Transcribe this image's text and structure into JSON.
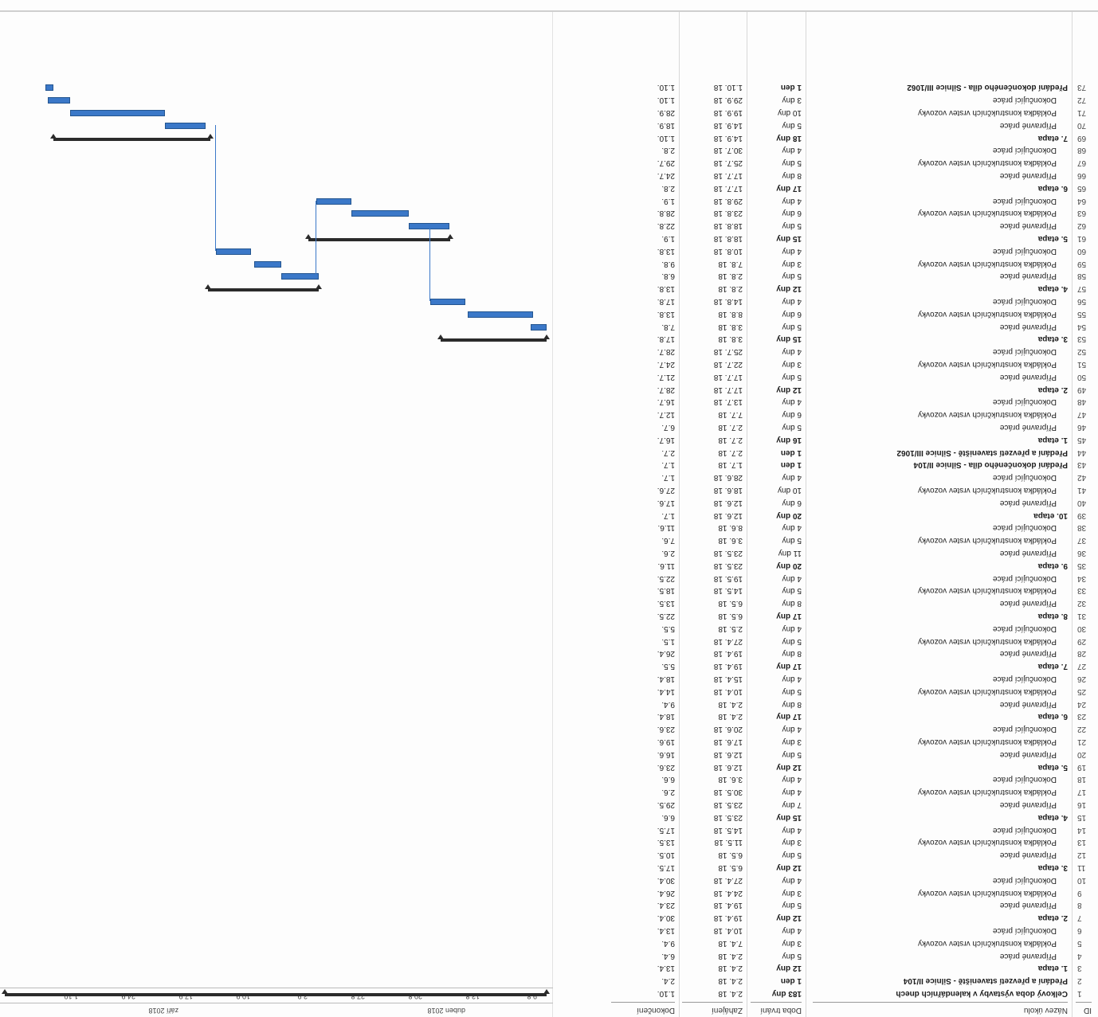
{
  "header": {
    "id": "ID",
    "name": "Název úkolu",
    "duration": "Doba trvání",
    "start": "Zahájení",
    "finish": "Dokončení"
  },
  "timescale": {
    "months": [
      "duben 2018",
      "září 2018"
    ],
    "days": [
      "9.8.",
      "13.8.",
      "20.8.",
      "27.8.",
      "3.9.",
      "10.9.",
      "17.9.",
      "24.9.",
      "1.10."
    ]
  },
  "tasks": [
    {
      "id": "1",
      "name": "Celkový doba výstavby v kalendářních dnech",
      "duration": "183 dny",
      "start": "2.4. 18",
      "finish": "1.10.",
      "level": 1
    },
    {
      "id": "2",
      "name": "Předání a převzetí staveniště - Silnice II/104",
      "duration": "1 den",
      "start": "2.4. 18",
      "finish": "2.4.",
      "level": 2
    },
    {
      "id": "3",
      "name": "1. etapa",
      "duration": "12 dny",
      "start": "2.4. 18",
      "finish": "13.4.",
      "level": 2
    },
    {
      "id": "4",
      "name": "Přípravné práce",
      "duration": "5 dny",
      "start": "2.4. 18",
      "finish": "6.4.",
      "level": 3
    },
    {
      "id": "5",
      "name": "Pokládka konstrukčních vrstev vozovky",
      "duration": "3 dny",
      "start": "7.4. 18",
      "finish": "9.4.",
      "level": 3
    },
    {
      "id": "6",
      "name": "Dokončující práce",
      "duration": "4 dny",
      "start": "10.4. 18",
      "finish": "13.4.",
      "level": 3
    },
    {
      "id": "7",
      "name": "2. etapa",
      "duration": "12 dny",
      "start": "19.4. 18",
      "finish": "30.4.",
      "level": 2
    },
    {
      "id": "8",
      "name": "Přípravné práce",
      "duration": "5 dny",
      "start": "19.4. 18",
      "finish": "23.4.",
      "level": 3
    },
    {
      "id": "9",
      "name": "Pokládka konstrukčních vrstev vozovky",
      "duration": "3 dny",
      "start": "24.4. 18",
      "finish": "26.4.",
      "level": 3
    },
    {
      "id": "10",
      "name": "Dokončující práce",
      "duration": "4 dny",
      "start": "27.4. 18",
      "finish": "30.4.",
      "level": 3
    },
    {
      "id": "11",
      "name": "3. etapa",
      "duration": "12 dny",
      "start": "6.5. 18",
      "finish": "17.5.",
      "level": 2
    },
    {
      "id": "12",
      "name": "Přípravné práce",
      "duration": "5 dny",
      "start": "6.5. 18",
      "finish": "10.5.",
      "level": 3
    },
    {
      "id": "13",
      "name": "Pokládka konstrukčních vrstev vozovky",
      "duration": "3 dny",
      "start": "11.5. 18",
      "finish": "13.5.",
      "level": 3
    },
    {
      "id": "14",
      "name": "Dokončující práce",
      "duration": "4 dny",
      "start": "14.5. 18",
      "finish": "17.5.",
      "level": 3
    },
    {
      "id": "15",
      "name": "4. etapa",
      "duration": "15 dny",
      "start": "23.5. 18",
      "finish": "6.6.",
      "level": 2
    },
    {
      "id": "16",
      "name": "Přípravné práce",
      "duration": "7 dny",
      "start": "23.5. 18",
      "finish": "29.5.",
      "level": 3
    },
    {
      "id": "17",
      "name": "Pokládka konstrukčních vrstev vozovky",
      "duration": "4 dny",
      "start": "30.5. 18",
      "finish": "2.6.",
      "level": 3
    },
    {
      "id": "18",
      "name": "Dokončující práce",
      "duration": "4 dny",
      "start": "3.6. 18",
      "finish": "6.6.",
      "level": 3
    },
    {
      "id": "19",
      "name": "5. etapa",
      "duration": "12 dny",
      "start": "12.6. 18",
      "finish": "23.6.",
      "level": 2
    },
    {
      "id": "20",
      "name": "Přípravné práce",
      "duration": "5 dny",
      "start": "12.6. 18",
      "finish": "16.6.",
      "level": 3
    },
    {
      "id": "21",
      "name": "Pokládka konstrukčních vrstev vozovky",
      "duration": "3 dny",
      "start": "17.6. 18",
      "finish": "19.6.",
      "level": 3
    },
    {
      "id": "22",
      "name": "Dokončující práce",
      "duration": "4 dny",
      "start": "20.6. 18",
      "finish": "23.6.",
      "level": 3
    },
    {
      "id": "23",
      "name": "6. etapa",
      "duration": "17 dny",
      "start": "2.4. 18",
      "finish": "18.4.",
      "level": 2
    },
    {
      "id": "24",
      "name": "Přípravné práce",
      "duration": "8 dny",
      "start": "2.4. 18",
      "finish": "9.4.",
      "level": 3
    },
    {
      "id": "25",
      "name": "Pokládka konstrukčních vrstev vozovky",
      "duration": "5 dny",
      "start": "10.4. 18",
      "finish": "14.4.",
      "level": 3
    },
    {
      "id": "26",
      "name": "Dokončující práce",
      "duration": "4 dny",
      "start": "15.4. 18",
      "finish": "18.4.",
      "level": 3
    },
    {
      "id": "27",
      "name": "7. etapa",
      "duration": "17 dny",
      "start": "19.4. 18",
      "finish": "5.5.",
      "level": 2
    },
    {
      "id": "28",
      "name": "Přípravné práce",
      "duration": "8 dny",
      "start": "19.4. 18",
      "finish": "26.4.",
      "level": 3
    },
    {
      "id": "29",
      "name": "Pokládka konstrukčních vrstev vozovky",
      "duration": "5 dny",
      "start": "27.4. 18",
      "finish": "1.5.",
      "level": 3
    },
    {
      "id": "30",
      "name": "Dokončující práce",
      "duration": "4 dny",
      "start": "2.5. 18",
      "finish": "5.5.",
      "level": 3
    },
    {
      "id": "31",
      "name": "8. etapa",
      "duration": "17 dny",
      "start": "6.5. 18",
      "finish": "22.5.",
      "level": 2
    },
    {
      "id": "32",
      "name": "Přípravné práce",
      "duration": "8 dny",
      "start": "6.5. 18",
      "finish": "13.5.",
      "level": 3
    },
    {
      "id": "33",
      "name": "Pokládka konstrukčních vrstev vozovky",
      "duration": "5 dny",
      "start": "14.5. 18",
      "finish": "18.5.",
      "level": 3
    },
    {
      "id": "34",
      "name": "Dokončující práce",
      "duration": "4 dny",
      "start": "19.5. 18",
      "finish": "22.5.",
      "level": 3
    },
    {
      "id": "35",
      "name": "9. etapa",
      "duration": "20 dny",
      "start": "23.5. 18",
      "finish": "11.6.",
      "level": 2
    },
    {
      "id": "36",
      "name": "Přípravné práce",
      "duration": "11 dny",
      "start": "23.5. 18",
      "finish": "2.6.",
      "level": 3
    },
    {
      "id": "37",
      "name": "Pokládka konstrukčních vrstev vozovky",
      "duration": "5 dny",
      "start": "3.6. 18",
      "finish": "7.6.",
      "level": 3
    },
    {
      "id": "38",
      "name": "Dokončující práce",
      "duration": "4 dny",
      "start": "8.6. 18",
      "finish": "11.6.",
      "level": 3
    },
    {
      "id": "39",
      "name": "10. etapa",
      "duration": "20 dny",
      "start": "12.6. 18",
      "finish": "1.7.",
      "level": 2
    },
    {
      "id": "40",
      "name": "Přípravné práce",
      "duration": "6 dny",
      "start": "12.6. 18",
      "finish": "17.6.",
      "level": 3
    },
    {
      "id": "41",
      "name": "Pokládka konstrukčních vrstev vozovky",
      "duration": "10 dny",
      "start": "18.6. 18",
      "finish": "27.6.",
      "level": 3
    },
    {
      "id": "42",
      "name": "Dokončující práce",
      "duration": "4 dny",
      "start": "28.6. 18",
      "finish": "1.7.",
      "level": 3
    },
    {
      "id": "43",
      "name": "Předání dokončeného díla - Silnice II/104",
      "duration": "1 den",
      "start": "1.7. 18",
      "finish": "1.7.",
      "level": 2
    },
    {
      "id": "44",
      "name": "Předání a převzetí staveniště - Silnice III/1062",
      "duration": "1 den",
      "start": "2.7. 18",
      "finish": "2.7.",
      "level": 2
    },
    {
      "id": "45",
      "name": "1. etapa",
      "duration": "16 dny",
      "start": "2.7. 18",
      "finish": "16.7.",
      "level": 2
    },
    {
      "id": "46",
      "name": "Přípravné práce",
      "duration": "5 dny",
      "start": "2.7. 18",
      "finish": "6.7.",
      "level": 3
    },
    {
      "id": "47",
      "name": "Pokládka konstrukčních vrstev vozovky",
      "duration": "6 dny",
      "start": "7.7. 18",
      "finish": "12.7.",
      "level": 3
    },
    {
      "id": "48",
      "name": "Dokončující práce",
      "duration": "4 dny",
      "start": "13.7. 18",
      "finish": "16.7.",
      "level": 3
    },
    {
      "id": "49",
      "name": "2. etapa",
      "duration": "12 dny",
      "start": "17.7. 18",
      "finish": "28.7.",
      "level": 2
    },
    {
      "id": "50",
      "name": "Přípravné práce",
      "duration": "5 dny",
      "start": "17.7. 18",
      "finish": "21.7.",
      "level": 3
    },
    {
      "id": "51",
      "name": "Pokládka konstrukčních vrstev vozovky",
      "duration": "3 dny",
      "start": "22.7. 18",
      "finish": "24.7.",
      "level": 3
    },
    {
      "id": "52",
      "name": "Dokončující práce",
      "duration": "4 dny",
      "start": "25.7. 18",
      "finish": "28.7.",
      "level": 3
    },
    {
      "id": "53",
      "name": "3. etapa",
      "duration": "15 dny",
      "start": "3.8. 18",
      "finish": "17.8.",
      "level": 2
    },
    {
      "id": "54",
      "name": "Přípravné práce",
      "duration": "5 dny",
      "start": "3.8. 18",
      "finish": "7.8.",
      "level": 3
    },
    {
      "id": "55",
      "name": "Pokládka konstrukčních vrstev vozovky",
      "duration": "6 dny",
      "start": "8.8. 18",
      "finish": "13.8.",
      "level": 3
    },
    {
      "id": "56",
      "name": "Dokončující práce",
      "duration": "4 dny",
      "start": "14.8. 18",
      "finish": "17.8.",
      "level": 3
    },
    {
      "id": "57",
      "name": "4. etapa",
      "duration": "12 dny",
      "start": "2.8. 18",
      "finish": "13.8.",
      "level": 2
    },
    {
      "id": "58",
      "name": "Přípravné práce",
      "duration": "5 dny",
      "start": "2.8. 18",
      "finish": "6.8.",
      "level": 3
    },
    {
      "id": "59",
      "name": "Pokládka konstrukčních vrstev vozovky",
      "duration": "3 dny",
      "start": "7.8. 18",
      "finish": "9.8.",
      "level": 3
    },
    {
      "id": "60",
      "name": "Dokončující práce",
      "duration": "4 dny",
      "start": "10.8. 18",
      "finish": "13.8.",
      "level": 3
    },
    {
      "id": "61",
      "name": "5. etapa",
      "duration": "15 dny",
      "start": "18.8. 18",
      "finish": "1.9.",
      "level": 2
    },
    {
      "id": "62",
      "name": "Přípravné práce",
      "duration": "5 dny",
      "start": "18.8. 18",
      "finish": "22.8.",
      "level": 3
    },
    {
      "id": "63",
      "name": "Pokládka konstrukčních vrstev vozovky",
      "duration": "6 dny",
      "start": "23.8. 18",
      "finish": "28.8.",
      "level": 3
    },
    {
      "id": "64",
      "name": "Dokončující práce",
      "duration": "4 dny",
      "start": "29.8. 18",
      "finish": "1.9.",
      "level": 3
    },
    {
      "id": "65",
      "name": "6. etapa",
      "duration": "17 dny",
      "start": "17.7. 18",
      "finish": "2.8.",
      "level": 2
    },
    {
      "id": "66",
      "name": "Přípravné práce",
      "duration": "8 dny",
      "start": "17.7. 18",
      "finish": "24.7.",
      "level": 3
    },
    {
      "id": "67",
      "name": "Pokládka konstrukčních vrstev vozovky",
      "duration": "5 dny",
      "start": "25.7. 18",
      "finish": "29.7.",
      "level": 3
    },
    {
      "id": "68",
      "name": "Dokončující práce",
      "duration": "4 dny",
      "start": "30.7. 18",
      "finish": "2.8.",
      "level": 3
    },
    {
      "id": "69",
      "name": "7. etapa",
      "duration": "18 dny",
      "start": "14.9. 18",
      "finish": "1.10.",
      "level": 2
    },
    {
      "id": "70",
      "name": "Přípravné práce",
      "duration": "5 dny",
      "start": "14.9. 18",
      "finish": "18.9.",
      "level": 3
    },
    {
      "id": "71",
      "name": "Pokládka konstrukčních vrstev vozovky",
      "duration": "10 dny",
      "start": "19.9. 18",
      "finish": "28.9.",
      "level": 3
    },
    {
      "id": "72",
      "name": "Dokončující práce",
      "duration": "3 dny",
      "start": "29.9. 18",
      "finish": "1.10.",
      "level": 3
    },
    {
      "id": "73",
      "name": "Předání dokončeného díla - Silnice III/1062",
      "duration": "1 den",
      "start": "1.10. 18",
      "finish": "1.10.",
      "level": 2
    }
  ],
  "gantt_bars": [
    {
      "row": 1,
      "kind": "summary",
      "from": 0.0,
      "to": 1.0
    },
    {
      "row": 53,
      "kind": "summary",
      "from": 0.0,
      "to": 0.195
    },
    {
      "row": 54,
      "kind": "task",
      "from": 0.0,
      "to": 0.03
    },
    {
      "row": 55,
      "kind": "task",
      "from": 0.025,
      "to": 0.145
    },
    {
      "row": 56,
      "kind": "task",
      "from": 0.15,
      "to": 0.215
    },
    {
      "row": 57,
      "kind": "summary",
      "from": 0.42,
      "to": 0.625
    },
    {
      "row": 58,
      "kind": "task",
      "from": 0.42,
      "to": 0.49
    },
    {
      "row": 59,
      "kind": "task",
      "from": 0.49,
      "to": 0.54
    },
    {
      "row": 60,
      "kind": "task",
      "from": 0.545,
      "to": 0.61
    },
    {
      "row": 61,
      "kind": "summary",
      "from": 0.178,
      "to": 0.44
    },
    {
      "row": 62,
      "kind": "task",
      "from": 0.18,
      "to": 0.255
    },
    {
      "row": 63,
      "kind": "task",
      "from": 0.255,
      "to": 0.36
    },
    {
      "row": 64,
      "kind": "task",
      "from": 0.36,
      "to": 0.425
    },
    {
      "row": 69,
      "kind": "summary",
      "from": 0.62,
      "to": 0.91
    },
    {
      "row": 70,
      "kind": "task",
      "from": 0.63,
      "to": 0.705
    },
    {
      "row": 71,
      "kind": "task",
      "from": 0.705,
      "to": 0.88
    },
    {
      "row": 72,
      "kind": "task",
      "from": 0.88,
      "to": 0.92
    },
    {
      "row": 73,
      "kind": "milestone",
      "from": 0.91,
      "to": 0.925
    }
  ]
}
